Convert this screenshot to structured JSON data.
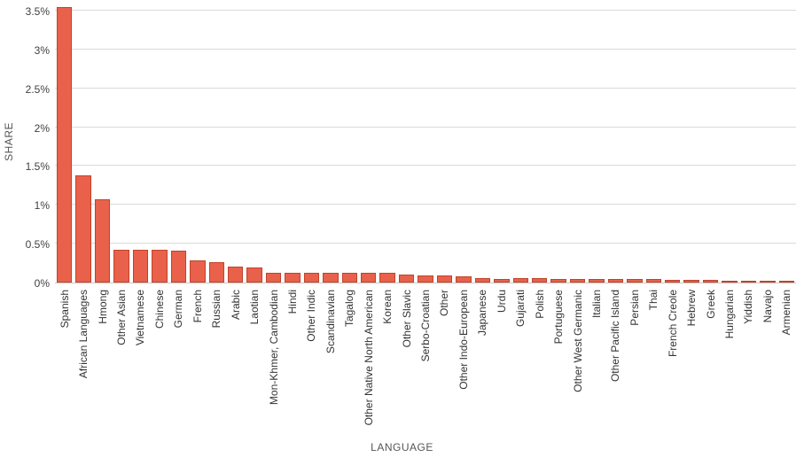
{
  "chart_data": {
    "type": "bar",
    "xlabel": "LANGUAGE",
    "ylabel": "SHARE",
    "ylim": [
      0,
      3.5
    ],
    "grid": "horizontal",
    "legend": "none",
    "bar_color": "#e9614a",
    "bar_border_color": "#c0432b",
    "yticks": [
      {
        "value": 0,
        "label": "0%"
      },
      {
        "value": 0.5,
        "label": "0.5%"
      },
      {
        "value": 1,
        "label": "1%"
      },
      {
        "value": 1.5,
        "label": "1.5%"
      },
      {
        "value": 2,
        "label": "2%"
      },
      {
        "value": 2.5,
        "label": "2.5%"
      },
      {
        "value": 3,
        "label": "3%"
      },
      {
        "value": 3.5,
        "label": "3.5%"
      }
    ],
    "categories": [
      "Spanish",
      "African Languages",
      "Hmong",
      "Other Asian",
      "Vietnamese",
      "Chinese",
      "German",
      "French",
      "Russian",
      "Arabic",
      "Laotian",
      "Mon-Khmer, Cambodian",
      "Hindi",
      "Other Indic",
      "Scandinavian",
      "Tagalog",
      "Other Native North American",
      "Korean",
      "Other Slavic",
      "Serbo-Croatian",
      "Other",
      "Other Indo-European",
      "Japanese",
      "Urdu",
      "Gujarati",
      "Polish",
      "Portuguese",
      "Other West Germanic",
      "Italian",
      "Other Pacific Island",
      "Persian",
      "Thai",
      "French Creole",
      "Hebrew",
      "Greek",
      "Hungarian",
      "Yiddish",
      "Navajo",
      "Armenian"
    ],
    "values": [
      3.54,
      1.38,
      1.07,
      0.42,
      0.42,
      0.42,
      0.41,
      0.28,
      0.26,
      0.21,
      0.19,
      0.13,
      0.13,
      0.13,
      0.13,
      0.12,
      0.12,
      0.12,
      0.1,
      0.09,
      0.09,
      0.08,
      0.06,
      0.05,
      0.06,
      0.06,
      0.05,
      0.05,
      0.05,
      0.04,
      0.04,
      0.04,
      0.03,
      0.03,
      0.03,
      0.02,
      0.01,
      0.01,
      0.01
    ]
  }
}
